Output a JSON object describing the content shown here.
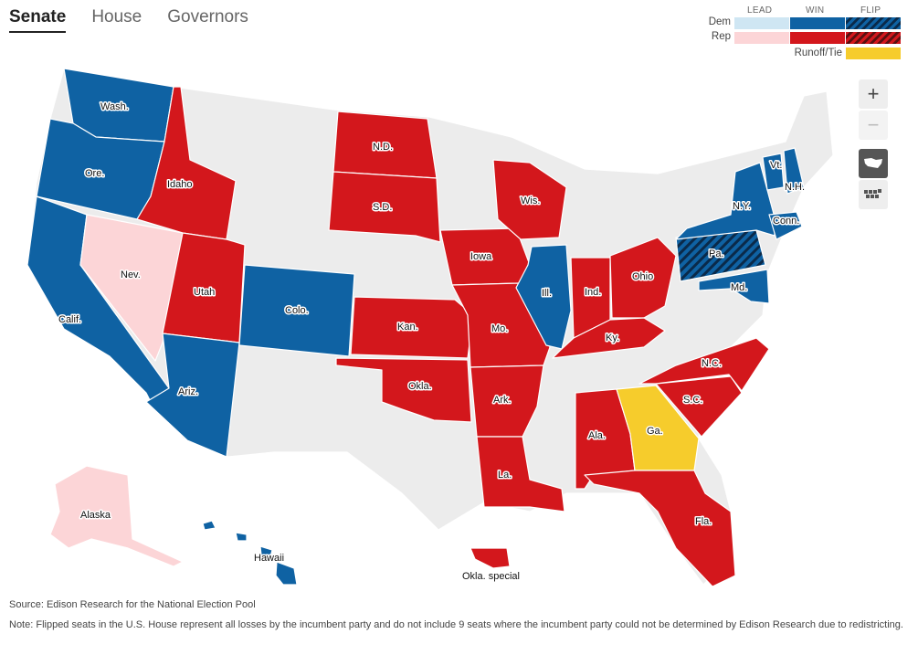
{
  "tabs": [
    {
      "label": "Senate",
      "active": true
    },
    {
      "label": "House",
      "active": false
    },
    {
      "label": "Governors",
      "active": false
    }
  ],
  "legend": {
    "columns": [
      "LEAD",
      "WIN",
      "FLIP"
    ],
    "rows": [
      {
        "label": "Dem",
        "lead": "#cfe6f3",
        "win": "#0f62a3",
        "flip": "#0f62a3"
      },
      {
        "label": "Rep",
        "lead": "#fcd5d7",
        "win": "#d3171c",
        "flip": "#d3171c"
      }
    ],
    "runoff_label": "Runoff/Tie",
    "runoff_color": "#f6cc2c"
  },
  "colors": {
    "none": "#ececec",
    "dem": "#0f62a3",
    "rep": "#d3171c",
    "rep_lead": "#fcd5d7",
    "runoff": "#f6cc2c",
    "flip_stripe": "#0a2a4a"
  },
  "states": {
    "wash": "Wash.",
    "ore": "Ore.",
    "idaho": "Idaho",
    "calif": "Calif.",
    "nev": "Nev.",
    "utah": "Utah",
    "ariz": "Ariz.",
    "colo": "Colo.",
    "nd": "N.D.",
    "sd": "S.D.",
    "kan": "Kan.",
    "okla": "Okla.",
    "iowa": "Iowa",
    "mo": "Mo.",
    "ark": "Ark.",
    "la": "La.",
    "wis": "Wis.",
    "ill": "Ill.",
    "ind": "Ind.",
    "ohio": "Ohio",
    "ky": "Ky.",
    "nc": "N.C.",
    "sc": "S.C.",
    "ga": "Ga.",
    "ala": "Ala.",
    "fla": "Fla.",
    "pa": "Pa.",
    "ny": "N.Y.",
    "vt": "Vt.",
    "nh": "N.H.",
    "conn": "Conn.",
    "md": "Md.",
    "alaska": "Alaska",
    "hawaii": "Hawaii",
    "okla_special": "Okla. special"
  },
  "source": "Source: Edison Research for the National Election Pool",
  "note": "Note: Flipped seats in the U.S. House represent all losses by the incumbent party and do not include 9 seats where the incumbent party could not be determined by Edison Research due to redistricting."
}
